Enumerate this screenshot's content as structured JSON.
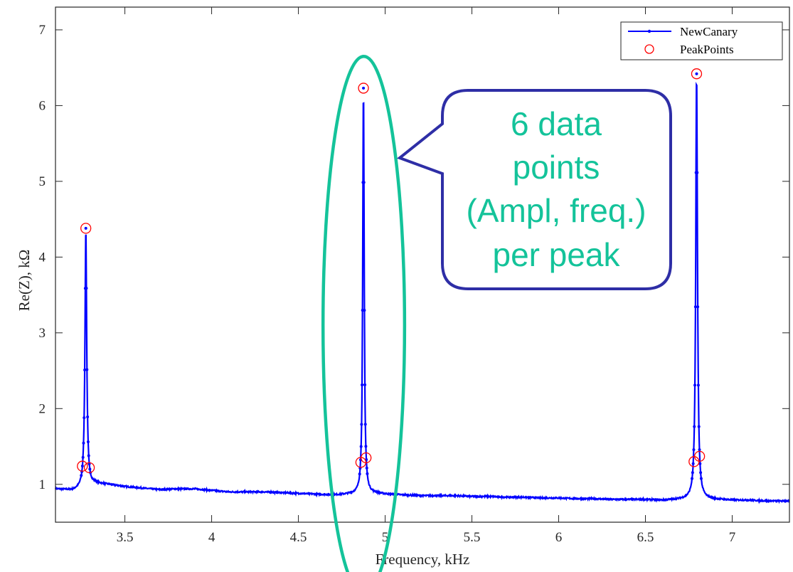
{
  "chart_data": {
    "type": "line",
    "title": "",
    "xlabel": "Frequency, kHz",
    "ylabel": "Re(Z), kΩ",
    "xlim": [
      3.1,
      7.33
    ],
    "ylim": [
      0.5,
      7.3
    ],
    "xticks": [
      3.5,
      4,
      4.5,
      5,
      5.5,
      6,
      6.5,
      7
    ],
    "xtick_labels": [
      "3.5",
      "4",
      "4.5",
      "5",
      "5.5",
      "6",
      "6.5",
      "7"
    ],
    "yticks": [
      1,
      2,
      3,
      4,
      5,
      6,
      7
    ],
    "ytick_labels": [
      "1",
      "2",
      "3",
      "4",
      "5",
      "6",
      "7"
    ],
    "grid": false,
    "legend": "top-right",
    "series": [
      {
        "name": "NewCanary",
        "color": "#0000ff",
        "style": "line-with-dots",
        "baseline": [
          [
            3.1,
            0.94
          ],
          [
            3.2,
            0.92
          ],
          [
            3.25,
            0.95
          ],
          [
            3.33,
            1.01
          ],
          [
            3.4,
            1.0
          ],
          [
            3.5,
            0.97
          ],
          [
            3.6,
            0.95
          ],
          [
            3.7,
            0.93
          ],
          [
            3.8,
            0.94
          ],
          [
            3.9,
            0.94
          ],
          [
            4.0,
            0.92
          ],
          [
            4.1,
            0.9
          ],
          [
            4.2,
            0.9
          ],
          [
            4.3,
            0.9
          ],
          [
            4.4,
            0.89
          ],
          [
            4.5,
            0.88
          ],
          [
            4.6,
            0.87
          ],
          [
            4.7,
            0.86
          ],
          [
            4.8,
            0.87
          ],
          [
            4.95,
            0.88
          ],
          [
            5.0,
            0.87
          ],
          [
            5.1,
            0.86
          ],
          [
            5.2,
            0.85
          ],
          [
            5.3,
            0.85
          ],
          [
            5.4,
            0.85
          ],
          [
            5.5,
            0.84
          ],
          [
            5.6,
            0.84
          ],
          [
            5.7,
            0.83
          ],
          [
            5.8,
            0.83
          ],
          [
            5.9,
            0.82
          ],
          [
            6.0,
            0.82
          ],
          [
            6.1,
            0.81
          ],
          [
            6.2,
            0.81
          ],
          [
            6.3,
            0.8
          ],
          [
            6.4,
            0.8
          ],
          [
            6.5,
            0.8
          ],
          [
            6.6,
            0.79
          ],
          [
            6.7,
            0.8
          ],
          [
            6.9,
            0.8
          ],
          [
            7.0,
            0.79
          ],
          [
            7.1,
            0.79
          ],
          [
            7.2,
            0.78
          ],
          [
            7.33,
            0.78
          ]
        ],
        "peaks": [
          {
            "center": 3.275,
            "amplitude": 4.38,
            "halfwidth": 0.006
          },
          {
            "center": 4.875,
            "amplitude": 6.23,
            "halfwidth": 0.005
          },
          {
            "center": 6.795,
            "amplitude": 6.42,
            "halfwidth": 0.006
          }
        ]
      },
      {
        "name": "PeakPoints",
        "color": "#ff0000",
        "style": "circle-markers",
        "points": [
          [
            3.275,
            4.38
          ],
          [
            3.255,
            1.24
          ],
          [
            3.295,
            1.22
          ],
          [
            4.875,
            6.23
          ],
          [
            4.86,
            1.29
          ],
          [
            4.89,
            1.35
          ],
          [
            6.795,
            6.42
          ],
          [
            6.78,
            1.3
          ],
          [
            6.812,
            1.37
          ]
        ]
      }
    ],
    "annotations": {
      "ellipse": {
        "center_x": 4.877,
        "center_y": 3.1,
        "semi_x": 0.235,
        "semi_y": 3.55,
        "color": "#14c39a"
      },
      "callout": {
        "lines": [
          "6 data",
          "points",
          "(Ampl, freq.)",
          "per peak"
        ],
        "text_color": "#14c39a",
        "border_color": "#2e2ea6"
      }
    }
  }
}
